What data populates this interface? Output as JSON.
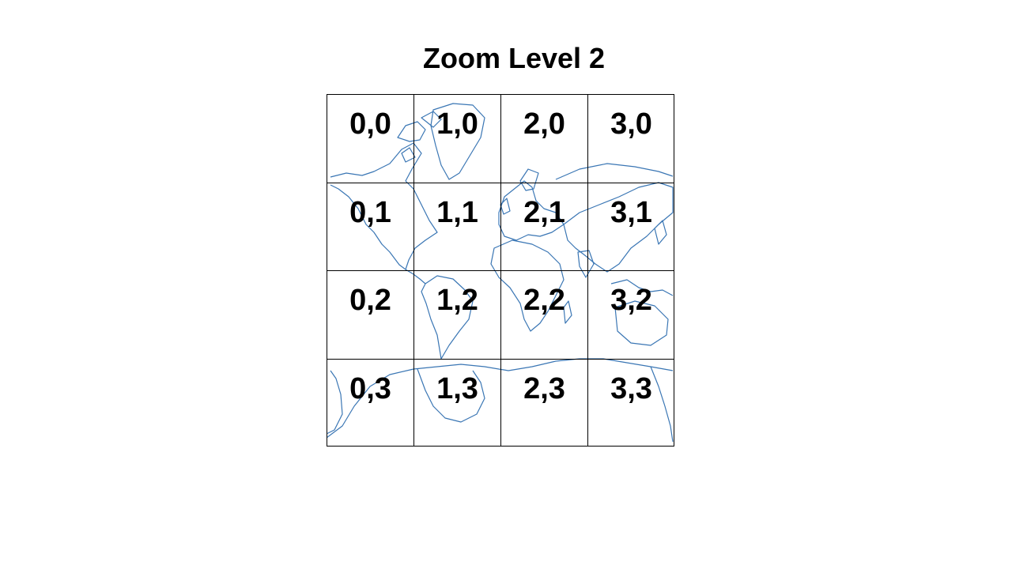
{
  "title": "Zoom Level 2",
  "map": {
    "coastline_color": "#3a76b4",
    "grid_color": "#000000"
  },
  "tiles": [
    {
      "label": "0,0"
    },
    {
      "label": "1,0"
    },
    {
      "label": "2,0"
    },
    {
      "label": "3,0"
    },
    {
      "label": "0,1"
    },
    {
      "label": "1,1"
    },
    {
      "label": "2,1"
    },
    {
      "label": "3,1"
    },
    {
      "label": "0,2"
    },
    {
      "label": "1,2"
    },
    {
      "label": "2,2"
    },
    {
      "label": "3,2"
    },
    {
      "label": "0,3"
    },
    {
      "label": "1,3"
    },
    {
      "label": "2,3"
    },
    {
      "label": "3,3"
    }
  ]
}
